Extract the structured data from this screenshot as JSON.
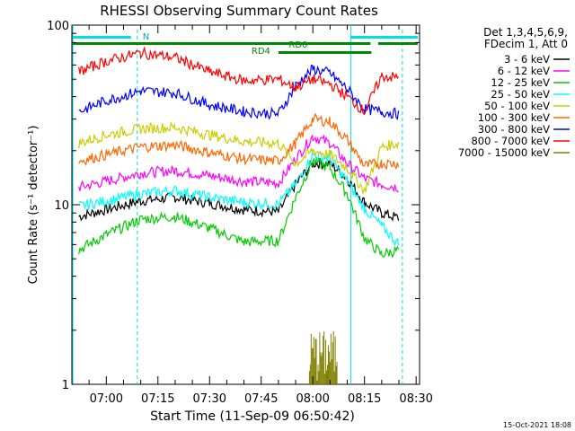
{
  "chart_data": {
    "type": "line",
    "title": "RHESSI Observing Summary Count Rates",
    "xlabel": "Start Time (11-Sep-09 06:50:42)",
    "ylabel": "Count Rate (s⁻¹ detector⁻¹)",
    "y_scale": "log",
    "ylim": [
      1,
      100
    ],
    "xlim": [
      "06:50",
      "08:31"
    ],
    "x_ticks": [
      "07:00",
      "07:15",
      "07:30",
      "07:45",
      "08:00",
      "08:15",
      "08:30"
    ],
    "y_ticks": [
      "1",
      "10",
      "100"
    ],
    "legend_placement": "right",
    "legend_header": [
      "Det 1,3,4,5,6,9,",
      "FDecim 1, Att 0"
    ],
    "footer_timestamp": "15-Oct-2021 18:08",
    "annotations": {
      "night_marker": "N",
      "rd4_label": "RD4",
      "rd0_label": "RD0"
    },
    "series": [
      {
        "name": "3 - 6 keV",
        "color": "#000000",
        "x": [
          "06:52",
          "07:00",
          "07:10",
          "07:20",
          "07:30",
          "07:40",
          "07:50",
          "07:55",
          "08:00",
          "08:05",
          "08:10",
          "08:15",
          "08:20",
          "08:25"
        ],
        "values": [
          8.6,
          9.4,
          10.5,
          11,
          10.2,
          9.4,
          9.1,
          13,
          17,
          17,
          14,
          10.3,
          9,
          8.4
        ]
      },
      {
        "name": "6 - 12 keV",
        "color": "#ff00ff",
        "x": [
          "06:52",
          "07:00",
          "07:10",
          "07:20",
          "07:30",
          "07:40",
          "07:50",
          "07:55",
          "08:00",
          "08:05",
          "08:10",
          "08:15",
          "08:20",
          "08:25"
        ],
        "values": [
          12.5,
          13.5,
          15,
          15.5,
          14.5,
          13.5,
          13.2,
          18,
          24,
          22,
          17,
          14,
          13,
          12.5
        ]
      },
      {
        "name": "12 - 25 keV",
        "color": "#00cc00",
        "x": [
          "06:52",
          "07:00",
          "07:10",
          "07:20",
          "07:30",
          "07:40",
          "07:50",
          "07:55",
          "08:00",
          "08:05",
          "08:10",
          "08:15",
          "08:20",
          "08:25"
        ],
        "values": [
          5.6,
          6.8,
          8.3,
          8.6,
          7.4,
          6.2,
          6.3,
          11,
          17.5,
          16,
          11.5,
          6.5,
          5.3,
          5.6
        ]
      },
      {
        "name": "25 - 50 keV",
        "color": "#00ffff",
        "x": [
          "06:52",
          "07:00",
          "07:10",
          "07:20",
          "07:30",
          "07:40",
          "07:50",
          "07:55",
          "08:00",
          "08:05",
          "08:10",
          "08:15",
          "08:20",
          "08:25"
        ],
        "values": [
          9.8,
          10.5,
          11.5,
          12,
          11,
          10.3,
          10.1,
          13,
          19,
          18,
          13.5,
          9.5,
          7.6,
          6
        ]
      },
      {
        "name": "50 - 100 keV",
        "color": "#cccc00",
        "x": [
          "06:52",
          "07:00",
          "07:10",
          "07:20",
          "07:30",
          "07:40",
          "07:50",
          "07:55",
          "08:00",
          "08:05",
          "08:10",
          "08:15",
          "08:20",
          "08:25"
        ],
        "values": [
          22,
          24.5,
          26.5,
          27,
          24.5,
          22.5,
          22,
          17,
          20,
          19,
          16,
          12,
          21,
          22
        ]
      },
      {
        "name": "100 - 300 keV",
        "color": "#ff6600",
        "x": [
          "06:52",
          "07:00",
          "07:10",
          "07:20",
          "07:30",
          "07:40",
          "07:50",
          "07:55",
          "08:00",
          "08:05",
          "08:10",
          "08:15",
          "08:20",
          "08:25"
        ],
        "values": [
          17.5,
          19,
          21,
          21.5,
          19.5,
          18,
          17.5,
          22,
          30,
          29,
          23,
          16.5,
          17,
          17
        ]
      },
      {
        "name": "300 - 800 keV",
        "color": "#0000ff",
        "x": [
          "06:52",
          "07:00",
          "07:10",
          "07:20",
          "07:30",
          "07:40",
          "07:50",
          "07:55",
          "08:00",
          "08:05",
          "08:10",
          "08:15",
          "08:20",
          "08:25"
        ],
        "values": [
          33,
          38,
          43,
          42,
          36,
          33,
          32,
          46,
          57,
          54,
          44,
          34,
          33,
          32
        ]
      },
      {
        "name": "800 - 7000 keV",
        "color": "#ff0000",
        "x": [
          "06:52",
          "07:00",
          "07:10",
          "07:20",
          "07:30",
          "07:40",
          "07:50",
          "07:55",
          "08:00",
          "08:05",
          "08:10",
          "08:15",
          "08:20",
          "08:25"
        ],
        "values": [
          55,
          63,
          70,
          66,
          55,
          49,
          50,
          45,
          50,
          47,
          40,
          33,
          52,
          51
        ]
      },
      {
        "name": "7000 - 15000 keV",
        "color": "#808000",
        "x": [
          "07:59",
          "08:01",
          "08:03",
          "08:05",
          "08:07"
        ],
        "values": [
          1.5,
          1.8,
          2,
          1.9,
          1.6
        ]
      }
    ]
  }
}
